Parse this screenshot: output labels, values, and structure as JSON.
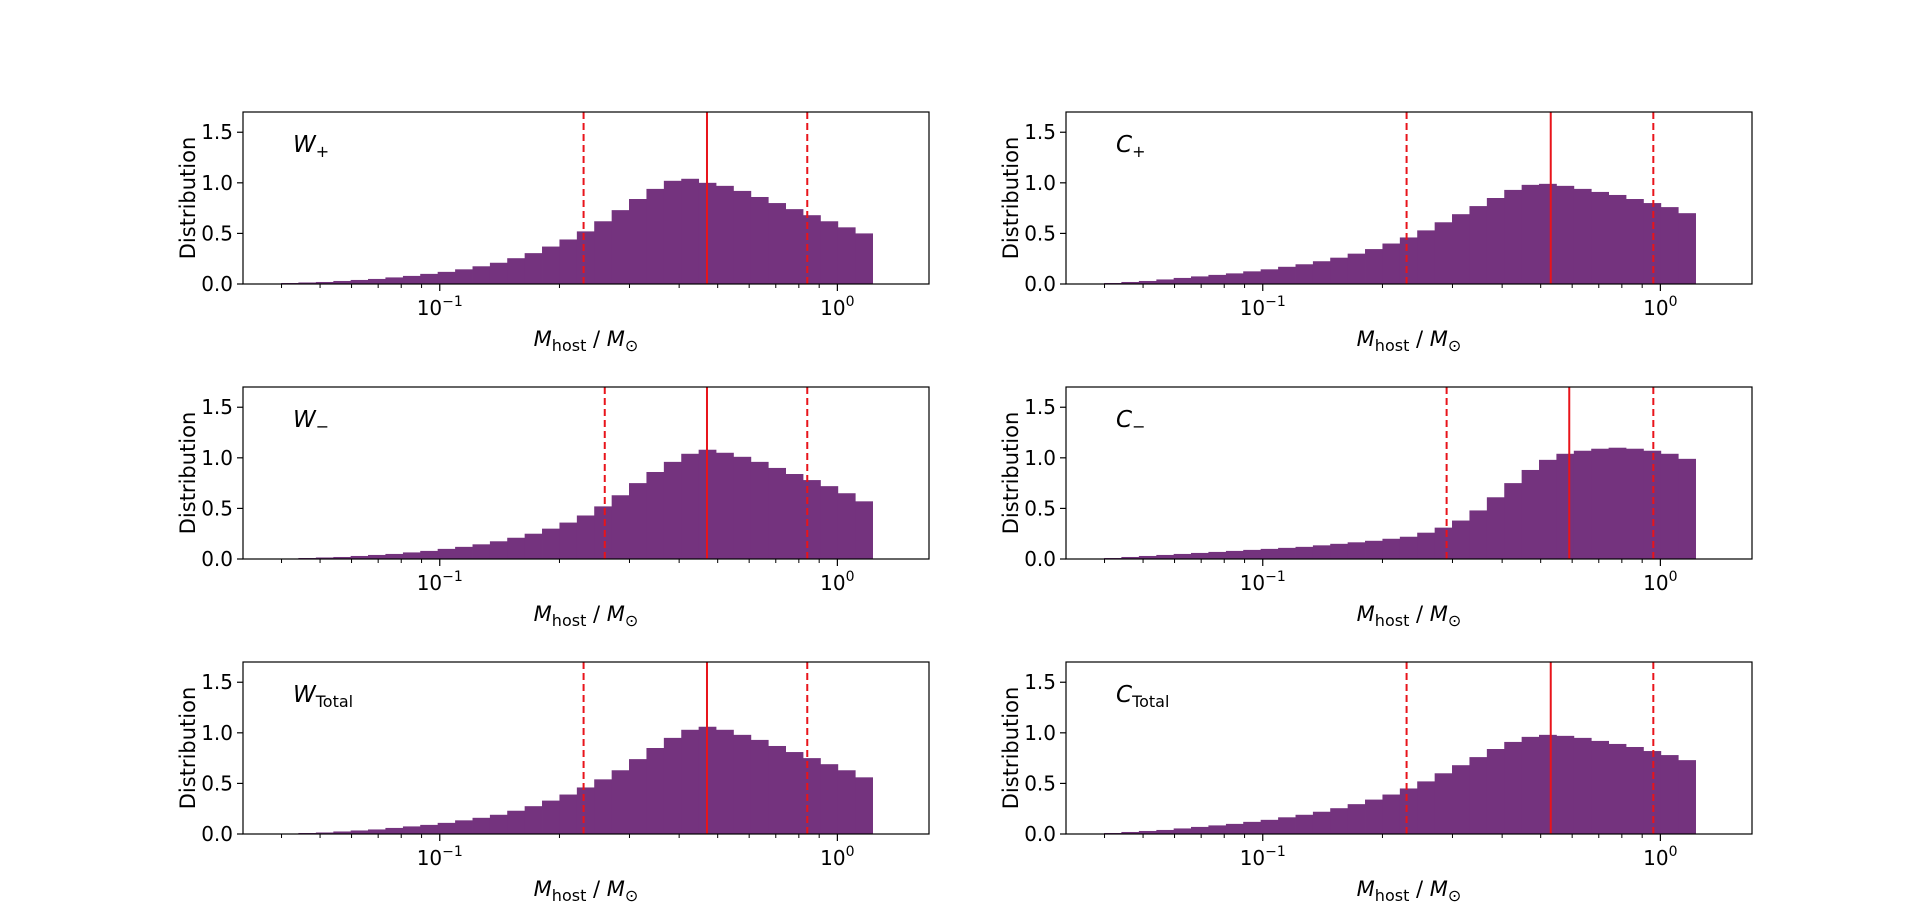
{
  "figure": {
    "bar_color": "#74337e",
    "line_color": "#e8141b",
    "axis_color": "#000000"
  },
  "chart_data": [
    {
      "type": "bar",
      "panel_label": {
        "base": "W",
        "sub": "+"
      },
      "xlabel": {
        "main": "M",
        "sub": "host",
        "sep": " / ",
        "unit": "M",
        "unit_sub": "⊙"
      },
      "ylabel": "Distribution",
      "xscale": "log",
      "xlim": [
        0.032,
        1.7
      ],
      "ylim": [
        0,
        1.7
      ],
      "yticks": [
        "0.0",
        "0.5",
        "1.0",
        "1.5"
      ],
      "xticks": [
        {
          "base": "10",
          "exp": "−1"
        },
        {
          "base": "10",
          "exp": "0"
        }
      ],
      "bin_edges": [
        0.0399,
        0.0441,
        0.0488,
        0.054,
        0.0597,
        0.066,
        0.073,
        0.0808,
        0.0893,
        0.0988,
        0.1093,
        0.1209,
        0.1337,
        0.1478,
        0.1635,
        0.1808,
        0.2,
        0.2212,
        0.2446,
        0.2706,
        0.2992,
        0.331,
        0.3661,
        0.4049,
        0.4478,
        0.4952,
        0.5477,
        0.6058,
        0.67,
        0.741,
        0.8195,
        0.9064,
        1.0025,
        1.1088,
        1.2263
      ],
      "values": [
        0.01,
        0.015,
        0.02,
        0.03,
        0.04,
        0.05,
        0.065,
        0.08,
        0.1,
        0.12,
        0.145,
        0.175,
        0.21,
        0.255,
        0.305,
        0.37,
        0.44,
        0.52,
        0.62,
        0.73,
        0.84,
        0.94,
        1.02,
        1.04,
        1.0,
        0.97,
        0.92,
        0.86,
        0.8,
        0.74,
        0.68,
        0.62,
        0.56,
        0.5
      ],
      "median": 0.47,
      "interval": [
        0.23,
        0.84
      ]
    },
    {
      "type": "bar",
      "panel_label": {
        "base": "C",
        "sub": "+"
      },
      "xlabel": {
        "main": "M",
        "sub": "host",
        "sep": " / ",
        "unit": "M",
        "unit_sub": "⊙"
      },
      "ylabel": "Distribution",
      "xscale": "log",
      "xlim": [
        0.032,
        1.7
      ],
      "ylim": [
        0,
        1.7
      ],
      "yticks": [
        "0.0",
        "0.5",
        "1.0",
        "1.5"
      ],
      "xticks": [
        {
          "base": "10",
          "exp": "−1"
        },
        {
          "base": "10",
          "exp": "0"
        }
      ],
      "bin_edges": [
        0.0399,
        0.0441,
        0.0488,
        0.054,
        0.0597,
        0.066,
        0.073,
        0.0808,
        0.0893,
        0.0988,
        0.1093,
        0.1209,
        0.1337,
        0.1478,
        0.1635,
        0.1808,
        0.2,
        0.2212,
        0.2446,
        0.2706,
        0.2992,
        0.331,
        0.3661,
        0.4049,
        0.4478,
        0.4952,
        0.5477,
        0.6058,
        0.67,
        0.741,
        0.8195,
        0.9064,
        1.0025,
        1.1088,
        1.2263
      ],
      "values": [
        0.01,
        0.02,
        0.03,
        0.045,
        0.06,
        0.075,
        0.09,
        0.105,
        0.125,
        0.145,
        0.17,
        0.195,
        0.225,
        0.26,
        0.3,
        0.345,
        0.4,
        0.46,
        0.53,
        0.61,
        0.69,
        0.77,
        0.85,
        0.93,
        0.98,
        0.99,
        0.97,
        0.94,
        0.91,
        0.88,
        0.84,
        0.8,
        0.76,
        0.7
      ],
      "median": 0.53,
      "interval": [
        0.23,
        0.96
      ]
    },
    {
      "type": "bar",
      "panel_label": {
        "base": "W",
        "sub": "−"
      },
      "xlabel": {
        "main": "M",
        "sub": "host",
        "sep": " / ",
        "unit": "M",
        "unit_sub": "⊙"
      },
      "ylabel": "Distribution",
      "xscale": "log",
      "xlim": [
        0.032,
        1.7
      ],
      "ylim": [
        0,
        1.7
      ],
      "yticks": [
        "0.0",
        "0.5",
        "1.0",
        "1.5"
      ],
      "xticks": [
        {
          "base": "10",
          "exp": "−1"
        },
        {
          "base": "10",
          "exp": "0"
        }
      ],
      "bin_edges": [
        0.0399,
        0.0441,
        0.0488,
        0.054,
        0.0597,
        0.066,
        0.073,
        0.0808,
        0.0893,
        0.0988,
        0.1093,
        0.1209,
        0.1337,
        0.1478,
        0.1635,
        0.1808,
        0.2,
        0.2212,
        0.2446,
        0.2706,
        0.2992,
        0.331,
        0.3661,
        0.4049,
        0.4478,
        0.4952,
        0.5477,
        0.6058,
        0.67,
        0.741,
        0.8195,
        0.9064,
        1.0025,
        1.1088,
        1.2263
      ],
      "values": [
        0.005,
        0.01,
        0.015,
        0.02,
        0.03,
        0.04,
        0.05,
        0.065,
        0.08,
        0.1,
        0.12,
        0.145,
        0.175,
        0.21,
        0.25,
        0.3,
        0.36,
        0.43,
        0.52,
        0.63,
        0.75,
        0.86,
        0.96,
        1.04,
        1.08,
        1.05,
        1.01,
        0.96,
        0.9,
        0.84,
        0.78,
        0.72,
        0.65,
        0.57
      ],
      "median": 0.47,
      "interval": [
        0.26,
        0.84
      ]
    },
    {
      "type": "bar",
      "panel_label": {
        "base": "C",
        "sub": "−"
      },
      "xlabel": {
        "main": "M",
        "sub": "host",
        "sep": " / ",
        "unit": "M",
        "unit_sub": "⊙"
      },
      "ylabel": "Distribution",
      "xscale": "log",
      "xlim": [
        0.032,
        1.7
      ],
      "ylim": [
        0,
        1.7
      ],
      "yticks": [
        "0.0",
        "0.5",
        "1.0",
        "1.5"
      ],
      "xticks": [
        {
          "base": "10",
          "exp": "−1"
        },
        {
          "base": "10",
          "exp": "0"
        }
      ],
      "bin_edges": [
        0.0399,
        0.0441,
        0.0488,
        0.054,
        0.0597,
        0.066,
        0.073,
        0.0808,
        0.0893,
        0.0988,
        0.1093,
        0.1209,
        0.1337,
        0.1478,
        0.1635,
        0.1808,
        0.2,
        0.2212,
        0.2446,
        0.2706,
        0.2992,
        0.331,
        0.3661,
        0.4049,
        0.4478,
        0.4952,
        0.5477,
        0.6058,
        0.67,
        0.741,
        0.8195,
        0.9064,
        1.0025,
        1.1088,
        1.2263
      ],
      "values": [
        0.01,
        0.02,
        0.03,
        0.04,
        0.05,
        0.06,
        0.07,
        0.08,
        0.09,
        0.1,
        0.11,
        0.12,
        0.135,
        0.15,
        0.165,
        0.18,
        0.2,
        0.22,
        0.26,
        0.31,
        0.38,
        0.48,
        0.61,
        0.75,
        0.88,
        0.98,
        1.04,
        1.07,
        1.09,
        1.1,
        1.09,
        1.07,
        1.04,
        0.99
      ],
      "median": 0.59,
      "interval": [
        0.29,
        0.96
      ]
    },
    {
      "type": "bar",
      "panel_label": {
        "base": "W",
        "sub": "Total"
      },
      "xlabel": {
        "main": "M",
        "sub": "host",
        "sep": " / ",
        "unit": "M",
        "unit_sub": "⊙"
      },
      "ylabel": "Distribution",
      "xscale": "log",
      "xlim": [
        0.032,
        1.7
      ],
      "ylim": [
        0,
        1.7
      ],
      "yticks": [
        "0.0",
        "0.5",
        "1.0",
        "1.5"
      ],
      "xticks": [
        {
          "base": "10",
          "exp": "−1"
        },
        {
          "base": "10",
          "exp": "0"
        }
      ],
      "bin_edges": [
        0.0399,
        0.0441,
        0.0488,
        0.054,
        0.0597,
        0.066,
        0.073,
        0.0808,
        0.0893,
        0.0988,
        0.1093,
        0.1209,
        0.1337,
        0.1478,
        0.1635,
        0.1808,
        0.2,
        0.2212,
        0.2446,
        0.2706,
        0.2992,
        0.331,
        0.3661,
        0.4049,
        0.4478,
        0.4952,
        0.5477,
        0.6058,
        0.67,
        0.741,
        0.8195,
        0.9064,
        1.0025,
        1.1088,
        1.2263
      ],
      "values": [
        0.005,
        0.01,
        0.015,
        0.025,
        0.035,
        0.045,
        0.06,
        0.075,
        0.09,
        0.11,
        0.135,
        0.16,
        0.19,
        0.23,
        0.275,
        0.33,
        0.39,
        0.46,
        0.54,
        0.63,
        0.74,
        0.85,
        0.95,
        1.03,
        1.06,
        1.03,
        0.98,
        0.93,
        0.87,
        0.81,
        0.75,
        0.69,
        0.63,
        0.56
      ],
      "median": 0.47,
      "interval": [
        0.23,
        0.84
      ]
    },
    {
      "type": "bar",
      "panel_label": {
        "base": "C",
        "sub": "Total"
      },
      "xlabel": {
        "main": "M",
        "sub": "host",
        "sep": " / ",
        "unit": "M",
        "unit_sub": "⊙"
      },
      "ylabel": "Distribution",
      "xscale": "log",
      "xlim": [
        0.032,
        1.7
      ],
      "ylim": [
        0,
        1.7
      ],
      "yticks": [
        "0.0",
        "0.5",
        "1.0",
        "1.5"
      ],
      "xticks": [
        {
          "base": "10",
          "exp": "−1"
        },
        {
          "base": "10",
          "exp": "0"
        }
      ],
      "bin_edges": [
        0.0399,
        0.0441,
        0.0488,
        0.054,
        0.0597,
        0.066,
        0.073,
        0.0808,
        0.0893,
        0.0988,
        0.1093,
        0.1209,
        0.1337,
        0.1478,
        0.1635,
        0.1808,
        0.2,
        0.2212,
        0.2446,
        0.2706,
        0.2992,
        0.331,
        0.3661,
        0.4049,
        0.4478,
        0.4952,
        0.5477,
        0.6058,
        0.67,
        0.741,
        0.8195,
        0.9064,
        1.0025,
        1.1088,
        1.2263
      ],
      "values": [
        0.01,
        0.02,
        0.03,
        0.04,
        0.055,
        0.07,
        0.085,
        0.1,
        0.12,
        0.14,
        0.165,
        0.19,
        0.22,
        0.255,
        0.295,
        0.34,
        0.39,
        0.45,
        0.52,
        0.6,
        0.68,
        0.76,
        0.84,
        0.91,
        0.96,
        0.98,
        0.97,
        0.95,
        0.92,
        0.89,
        0.86,
        0.82,
        0.78,
        0.73
      ],
      "median": 0.53,
      "interval": [
        0.23,
        0.96
      ]
    }
  ]
}
